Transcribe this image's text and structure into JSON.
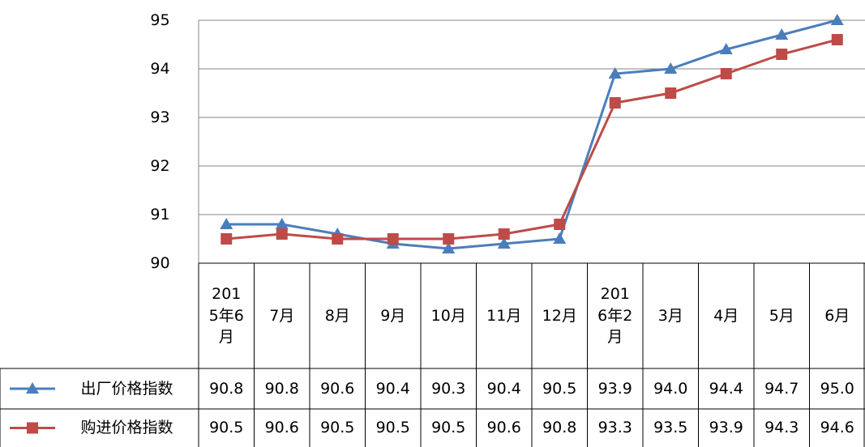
{
  "chart_data": {
    "type": "line",
    "categories": [
      "2015年6月",
      "7月",
      "8月",
      "9月",
      "10月",
      "11月",
      "12月",
      "2016年2月",
      "3月",
      "4月",
      "5月",
      "6月"
    ],
    "series": [
      {
        "name": "出厂价格指数",
        "color": "#4a7ebb",
        "marker": "triangle",
        "values": [
          90.8,
          90.8,
          90.6,
          90.4,
          90.3,
          90.4,
          90.5,
          93.9,
          94.0,
          94.4,
          94.7,
          95.0
        ],
        "value_labels": [
          "90.8",
          "90.8",
          "90.6",
          "90.4",
          "90.3",
          "90.4",
          "90.5",
          "93.9",
          "94.0",
          "94.4",
          "94.7",
          "95.0"
        ]
      },
      {
        "name": "购进价格指数",
        "color": "#be4b48",
        "marker": "square",
        "values": [
          90.5,
          90.6,
          90.5,
          90.5,
          90.5,
          90.6,
          90.8,
          93.3,
          93.5,
          93.9,
          94.3,
          94.6
        ],
        "value_labels": [
          "90.5",
          "90.6",
          "90.5",
          "90.5",
          "90.5",
          "90.6",
          "90.8",
          "93.3",
          "93.5",
          "93.9",
          "94.3",
          "94.6"
        ]
      }
    ],
    "ylim": [
      90,
      95
    ],
    "yticks": [
      90,
      91,
      92,
      93,
      94,
      95
    ],
    "grid": true
  }
}
